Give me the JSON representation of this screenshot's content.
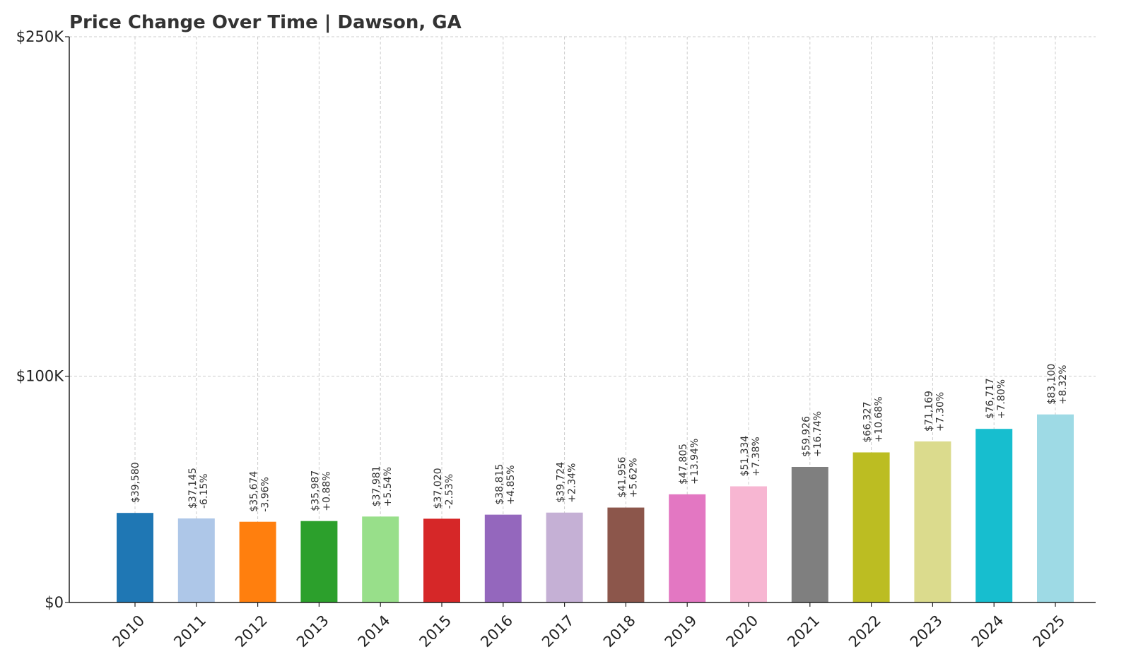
{
  "chart_data": {
    "type": "bar",
    "title": "Price Change Over Time | Dawson, GA",
    "xlabel": "",
    "ylabel": "",
    "ylim": [
      0,
      250000
    ],
    "yticks": [
      {
        "value": 0,
        "label": "$0"
      },
      {
        "value": 100000,
        "label": "$100K"
      },
      {
        "value": 250000,
        "label": "$250K"
      }
    ],
    "grid": true,
    "categories": [
      "2010",
      "2011",
      "2012",
      "2013",
      "2014",
      "2015",
      "2016",
      "2017",
      "2018",
      "2019",
      "2020",
      "2021",
      "2022",
      "2023",
      "2024",
      "2025"
    ],
    "values": [
      39580,
      37145,
      35674,
      35987,
      37981,
      37020,
      38815,
      39724,
      41956,
      47805,
      51334,
      59926,
      66327,
      71169,
      76717,
      83100
    ],
    "value_labels": [
      "$39,580",
      "$37,145",
      "$35,674",
      "$35,987",
      "$37,981",
      "$37,020",
      "$38,815",
      "$39,724",
      "$41,956",
      "$47,805",
      "$51,334",
      "$59,926",
      "$66,327",
      "$71,169",
      "$76,717",
      "$83,100"
    ],
    "change_labels": [
      "",
      "-6.15%",
      "-3.96%",
      "+0.88%",
      "+5.54%",
      "-2.53%",
      "+4.85%",
      "+2.34%",
      "+5.62%",
      "+13.94%",
      "+7.38%",
      "+16.74%",
      "+10.68%",
      "+7.30%",
      "+7.80%",
      "+8.32%"
    ],
    "colors": [
      "#1f77b4",
      "#aec7e8",
      "#ff7f0e",
      "#2ca02c",
      "#98df8a",
      "#d62728",
      "#9467bd",
      "#c5b0d5",
      "#8c564b",
      "#e377c2",
      "#f7b6d2",
      "#7f7f7f",
      "#bcbd22",
      "#dbdb8d",
      "#17becf",
      "#9edae5"
    ]
  }
}
